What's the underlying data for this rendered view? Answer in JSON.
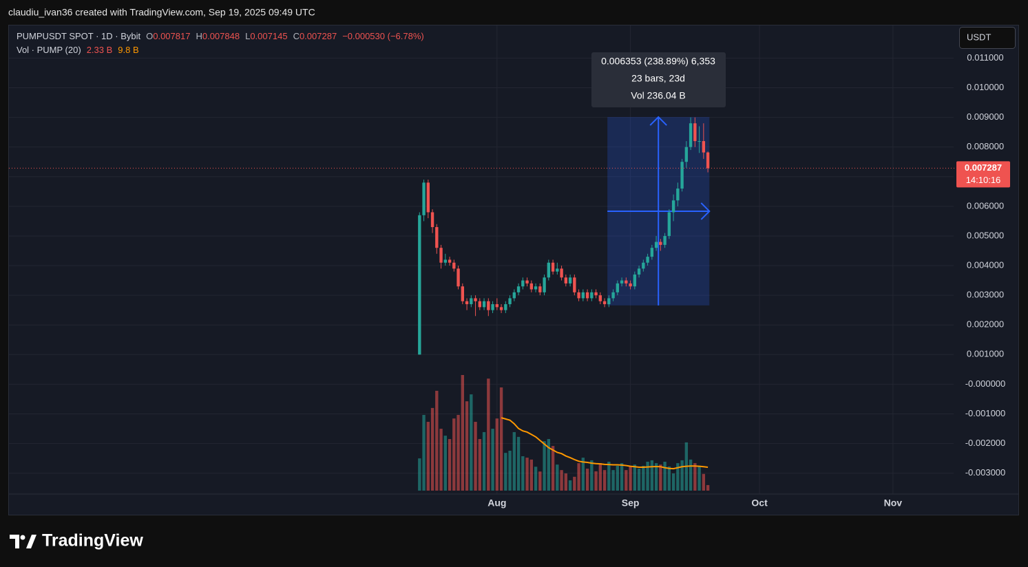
{
  "header": {
    "credit": "claudiu_ivan36 created with TradingView.com, Sep 19, 2025 09:49 UTC",
    "brand": "TradingView"
  },
  "chart_data": {
    "type": "candlestick",
    "symbol": "PUMPUSDT SPOT · 1D · Bybit",
    "ohlc_labels": [
      "O",
      "H",
      "L",
      "C"
    ],
    "change": "−0.000530 (−6.78%)",
    "currency_button": "USDT",
    "countdown": "14:10:16",
    "colors": {
      "up": "#26a69a",
      "down": "#ef5350"
    },
    "open": [
      0.001,
      0.0057,
      0.0068,
      0.0058,
      0.0053,
      0.0046,
      0.0041,
      0.0042,
      0.0041,
      0.0039,
      0.0033,
      0.0028,
      0.0027,
      0.0029,
      0.0028,
      0.0026,
      0.0028,
      0.0025,
      0.0027,
      0.0026,
      0.0025,
      0.0027,
      0.0029,
      0.0031,
      0.0033,
      0.0035,
      0.0034,
      0.0032,
      0.0033,
      0.0031,
      0.0036,
      0.0041,
      0.0038,
      0.0039,
      0.0036,
      0.0034,
      0.0036,
      0.0031,
      0.0029,
      0.0031,
      0.0029,
      0.0031,
      0.003,
      0.0028,
      0.0027,
      0.0029,
      0.0031,
      0.0034,
      0.0035,
      0.0034,
      0.0033,
      0.0037,
      0.0039,
      0.0041,
      0.0043,
      0.0046,
      0.0048,
      0.0047,
      0.005,
      0.0058,
      0.0062,
      0.0066,
      0.0075,
      0.008,
      0.0088,
      0.0082,
      0.0082,
      0.007817
    ],
    "high": [
      0.0058,
      0.0069,
      0.0069,
      0.0059,
      0.0054,
      0.0047,
      0.0044,
      0.0043,
      0.0042,
      0.004,
      0.0034,
      0.0029,
      0.003,
      0.003,
      0.0029,
      0.0029,
      0.0029,
      0.0028,
      0.0029,
      0.0027,
      0.0028,
      0.003,
      0.0032,
      0.0034,
      0.0036,
      0.0036,
      0.0035,
      0.0034,
      0.0034,
      0.0037,
      0.0042,
      0.0042,
      0.0041,
      0.004,
      0.0037,
      0.0037,
      0.0037,
      0.0032,
      0.0032,
      0.0032,
      0.0032,
      0.0032,
      0.0031,
      0.0029,
      0.003,
      0.0032,
      0.0035,
      0.0036,
      0.0036,
      0.0035,
      0.0038,
      0.004,
      0.0042,
      0.0044,
      0.0047,
      0.005,
      0.0049,
      0.0051,
      0.0059,
      0.0064,
      0.0068,
      0.0076,
      0.0082,
      0.009,
      0.009,
      0.0087,
      0.0088,
      0.007848
    ],
    "low": [
      0.001,
      0.0055,
      0.0056,
      0.0051,
      0.0044,
      0.0039,
      0.004,
      0.004,
      0.0038,
      0.0032,
      0.0027,
      0.0025,
      0.0026,
      0.0023,
      0.0025,
      0.0025,
      0.0023,
      0.0024,
      0.0025,
      0.0024,
      0.0024,
      0.0026,
      0.0028,
      0.003,
      0.0032,
      0.0033,
      0.0031,
      0.0031,
      0.003,
      0.003,
      0.0035,
      0.0037,
      0.0037,
      0.0035,
      0.0033,
      0.0033,
      0.003,
      0.0028,
      0.0028,
      0.0028,
      0.0028,
      0.0029,
      0.0027,
      0.0026,
      0.0026,
      0.0028,
      0.003,
      0.0033,
      0.0033,
      0.0032,
      0.0032,
      0.0036,
      0.0038,
      0.004,
      0.0042,
      0.0045,
      0.0045,
      0.0046,
      0.0049,
      0.0055,
      0.006,
      0.0065,
      0.0073,
      0.0079,
      0.008,
      0.0078,
      0.0076,
      0.007145
    ],
    "close": [
      0.0057,
      0.0068,
      0.0058,
      0.0053,
      0.0046,
      0.0041,
      0.0042,
      0.0041,
      0.0039,
      0.0033,
      0.0028,
      0.0027,
      0.0029,
      0.0028,
      0.0026,
      0.0028,
      0.0025,
      0.0027,
      0.0026,
      0.0025,
      0.0027,
      0.0029,
      0.0031,
      0.0033,
      0.0035,
      0.0034,
      0.0032,
      0.0033,
      0.0031,
      0.0036,
      0.0041,
      0.0038,
      0.0039,
      0.0036,
      0.0034,
      0.0036,
      0.0031,
      0.0029,
      0.0031,
      0.0029,
      0.0031,
      0.003,
      0.0028,
      0.0027,
      0.0029,
      0.0031,
      0.0034,
      0.0035,
      0.0034,
      0.0033,
      0.0037,
      0.0039,
      0.0041,
      0.0043,
      0.0046,
      0.0048,
      0.0047,
      0.005,
      0.0058,
      0.0062,
      0.0066,
      0.0075,
      0.008,
      0.0088,
      0.0082,
      0.0082,
      0.007817,
      0.007287
    ],
    "xlim": [
      -95.4,
      123.3
    ],
    "xticks": [
      {
        "value": 18,
        "label": "Aug"
      },
      {
        "value": 49,
        "label": "Sep"
      },
      {
        "value": 79,
        "label": "Oct"
      },
      {
        "value": 110,
        "label": "Nov"
      }
    ],
    "ylim": [
      -0.0044,
      0.0121
    ],
    "yticks": [
      {
        "value": 0.011,
        "label": "0.011000"
      },
      {
        "value": 0.01,
        "label": "0.010000"
      },
      {
        "value": 0.009,
        "label": "0.009000"
      },
      {
        "value": 0.008,
        "label": "0.008000"
      },
      {
        "value": 0.007,
        "label": "0.007000"
      },
      {
        "value": 0.006,
        "label": "0.006000"
      },
      {
        "value": 0.005,
        "label": "0.005000"
      },
      {
        "value": 0.004,
        "label": "0.004000"
      },
      {
        "value": 0.003,
        "label": "0.003000"
      },
      {
        "value": 0.002,
        "label": "0.002000"
      },
      {
        "value": 0.001,
        "label": "0.001000"
      },
      {
        "value": 0,
        "label": "-0.000000"
      },
      {
        "value": -0.001,
        "label": "-0.001000"
      },
      {
        "value": -0.002,
        "label": "-0.002000"
      },
      {
        "value": -0.003,
        "label": "-0.003000"
      }
    ],
    "grid": true,
    "volume": {
      "name": "Vol · PUMP (20)",
      "ylim": [
        0,
        48.4
      ],
      "last_label": "2.33 B",
      "values": [
        13.5,
        31.7,
        28.8,
        34.6,
        41.8,
        25.9,
        23,
        21.6,
        30.2,
        31.7,
        48.4,
        37.4,
        40.3,
        28.8,
        21.6,
        24.5,
        46.9,
        25.9,
        30.2,
        43.2,
        15.8,
        16.7,
        24.5,
        22.5,
        14.4,
        13.8,
        13,
        10,
        8,
        20.7,
        21.6,
        18.7,
        10.9,
        8.6,
        7.2,
        4.3,
        5.8,
        11.5,
        13.8,
        9.2,
        12.7,
        8.1,
        11.5,
        8.6,
        12.1,
        8.6,
        10.4,
        11.5,
        8.6,
        10.1,
        10.9,
        9.2,
        10.4,
        12.1,
        12.7,
        11.5,
        10.9,
        12.1,
        10.1,
        7.2,
        11.5,
        12.7,
        20.2,
        13,
        11.5,
        10,
        7,
        2.33
      ],
      "ma": {
        "color": "#ff9800",
        "last_label": "9.8 B",
        "values": [
          null,
          null,
          null,
          null,
          null,
          null,
          null,
          null,
          null,
          null,
          null,
          null,
          null,
          null,
          null,
          null,
          null,
          null,
          null,
          30.5,
          30,
          29.5,
          28,
          26,
          25,
          24.5,
          23.5,
          22.5,
          21,
          19.5,
          18,
          17,
          16,
          15.5,
          14.5,
          13.8,
          13,
          12.3,
          12,
          11.8,
          11.5,
          11.3,
          11.2,
          11,
          10.9,
          10.8,
          10.8,
          10.7,
          10.5,
          10.2,
          10,
          9.8,
          9.8,
          9.9,
          10,
          10.1,
          10,
          9.6,
          9.3,
          9.2,
          9.6,
          10,
          10.2,
          10.3,
          10.3,
          10.2,
          10,
          9.8
        ]
      }
    },
    "measure": {
      "from_index": 44,
      "to_index": 67,
      "low": 0.002659,
      "high": 0.009012,
      "lines": [
        "0.006353 (238.89%) 6,353",
        "23 bars, 23d",
        "Vol 236.04 B"
      ]
    }
  }
}
